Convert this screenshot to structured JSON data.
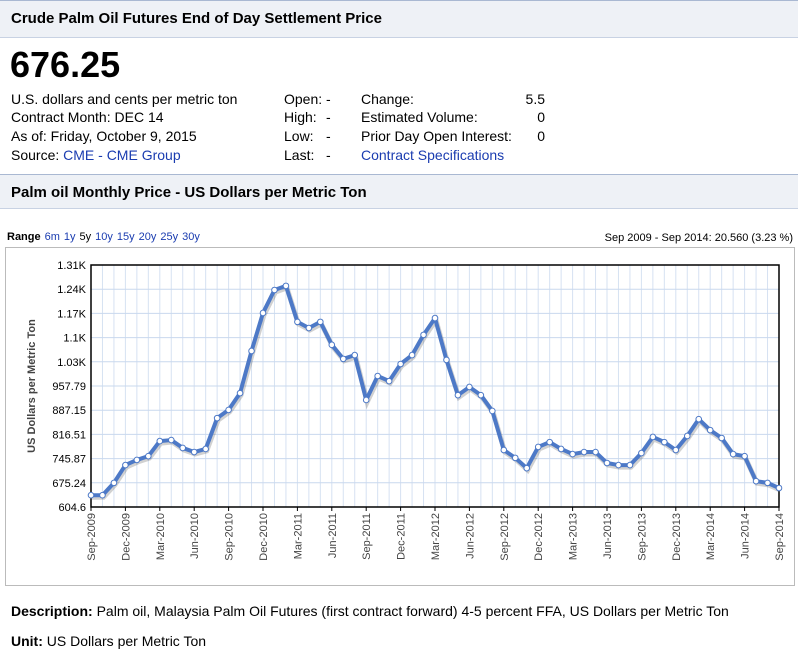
{
  "header": {
    "title": "Crude Palm Oil Futures End of Day Settlement Price"
  },
  "quote": {
    "price": "676.25",
    "unit": "U.S. dollars and cents per metric ton",
    "contract_month": "Contract Month: DEC 14",
    "as_of": "As of: Friday, October 9, 2015",
    "source_label": "Source:",
    "source_link": "CME - CME Group",
    "middle": [
      {
        "label": "Open:",
        "value": "-"
      },
      {
        "label": "High:",
        "value": "-"
      },
      {
        "label": "Low:",
        "value": "-"
      },
      {
        "label": "Last:",
        "value": "-"
      }
    ],
    "right": [
      {
        "label": "Change:",
        "value": 5.5
      },
      {
        "label": "Estimated Volume:",
        "value": 0
      },
      {
        "label": "Prior Day Open Interest:",
        "value": 0
      }
    ],
    "spec_link": "Contract Specifications"
  },
  "chart_data": {
    "type": "line",
    "title": "Palm oil Monthly Price - US Dollars per Metric Ton",
    "range_label": "Range",
    "range_options": [
      "6m",
      "1y",
      "5y",
      "10y",
      "15y",
      "20y",
      "25y",
      "30y"
    ],
    "active_range": "5y",
    "summary": "Sep 2009 - Sep 2014: 20.560 (3.23 %)",
    "y_label": "US Dollars per Metric Ton",
    "color": "#4d79c7",
    "grid": true,
    "categories": [
      "Sep-2009",
      null,
      null,
      "Dec-2009",
      null,
      null,
      "Mar-2010",
      null,
      null,
      "Jun-2010",
      null,
      null,
      "Sep-2010",
      null,
      null,
      "Dec-2010",
      null,
      null,
      "Mar-2011",
      null,
      null,
      "Jun-2011",
      null,
      null,
      "Sep-2011",
      null,
      null,
      "Dec-2011",
      null,
      null,
      "Mar-2012",
      null,
      null,
      "Jun-2012",
      null,
      null,
      "Sep-2012",
      null,
      null,
      "Dec-2012",
      null,
      null,
      "Mar-2013",
      null,
      null,
      "Jun-2013",
      null,
      null,
      "Sep-2013",
      null,
      null,
      "Dec-2013",
      null,
      null,
      "Mar-2014",
      null,
      null,
      "Jun-2014",
      null,
      null,
      "Sep-2014"
    ],
    "values": [
      639,
      639,
      675,
      727,
      742,
      753,
      797,
      800,
      777,
      765,
      774,
      864,
      888,
      937,
      1060,
      1171,
      1238,
      1250,
      1145,
      1127,
      1145,
      1078,
      1037,
      1048,
      917,
      987,
      972,
      1022,
      1048,
      1107,
      1156,
      1034,
      931,
      955,
      931,
      885,
      771,
      748,
      718,
      780,
      794,
      774,
      759,
      765,
      765,
      733,
      727,
      727,
      762,
      809,
      794,
      771,
      812,
      861,
      829,
      806,
      759,
      753,
      680,
      675,
      660
    ],
    "ylim": [
      604.6,
      1310.98
    ],
    "yticks": [
      604.6,
      675.24,
      745.87,
      816.51,
      887.15,
      957.79,
      {
        "value": 1028.43,
        "label": "1.03K"
      },
      {
        "value": 1099.07,
        "label": "1.1K"
      },
      {
        "value": 1169.7,
        "label": "1.17K"
      },
      {
        "value": 1240.34,
        "label": "1.24K"
      },
      {
        "value": 1310.98,
        "label": "1.31K"
      }
    ]
  },
  "description": {
    "label": "Description:",
    "text": "Palm oil, Malaysia Palm Oil Futures (first contract forward) 4-5 percent FFA, US Dollars per Metric Ton"
  },
  "unit": {
    "label": "Unit:",
    "text": "US Dollars per Metric Ton"
  }
}
